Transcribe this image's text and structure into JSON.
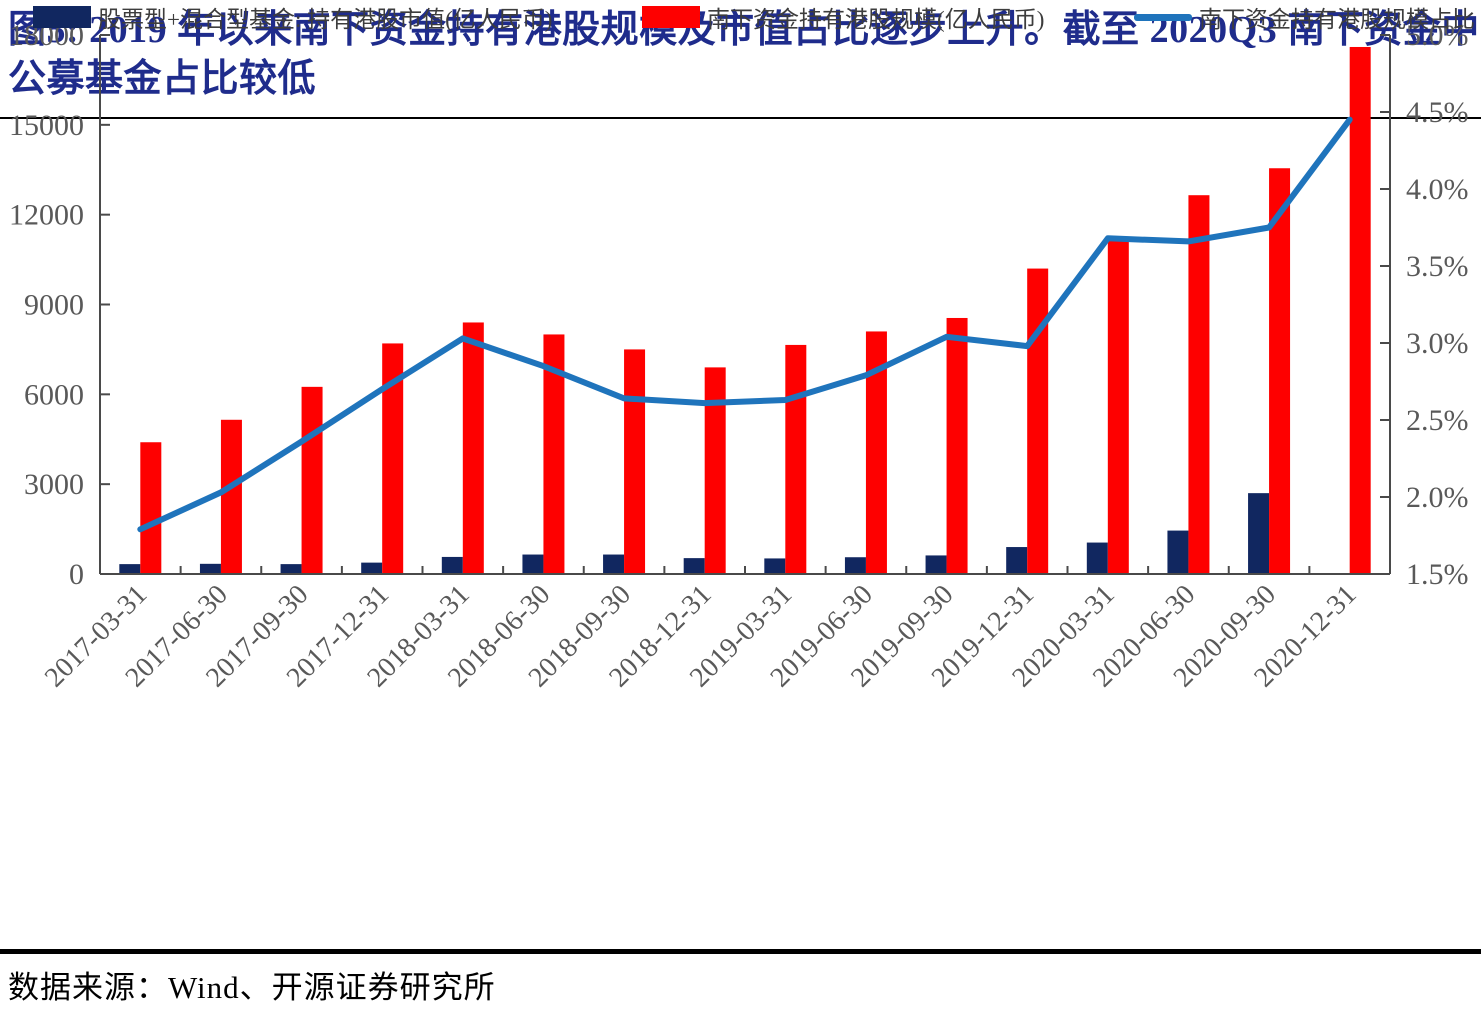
{
  "title": "图5: 2019 年以来南下资金持有港股规模及市值占比逐步上升。截至 2020Q3 南下资金中公募基金占比较低",
  "source": "数据来源：Wind、开源证券研究所",
  "colors": {
    "title_blue": "#1F2C8C",
    "fund_bar_navy": "#112760",
    "southbound_bar_red": "#FE0000",
    "ratio_line_blue": "#1F74BC",
    "axis_gray": "#4a4a4a",
    "tick_label_gray": "#595959",
    "legend_text": "#3d3d3d"
  },
  "legend": {
    "items": [
      {
        "label": "股票型+混合型基金: 持有港股市值(亿人民币)",
        "swatch": "bar"
      },
      {
        "label": "南下资金持有港股规模(亿人民币)",
        "swatch": "bar"
      },
      {
        "label": "南下资金持有港股规模占比",
        "swatch": "line"
      }
    ]
  },
  "chart_data": {
    "type": "bar",
    "subtype": "bar+line combo, dual axis",
    "categories": [
      "2017-03-31",
      "2017-06-30",
      "2017-09-30",
      "2017-12-31",
      "2018-03-31",
      "2018-06-30",
      "2018-09-30",
      "2018-12-31",
      "2019-03-31",
      "2019-06-30",
      "2019-09-30",
      "2019-12-31",
      "2020-03-31",
      "2020-06-30",
      "2020-09-30",
      "2020-12-31"
    ],
    "series": [
      {
        "name": "股票型+混合型基金: 持有港股市值(亿人民币)",
        "type": "bar",
        "axis": "left",
        "color": "#112760",
        "values": [
          330,
          340,
          330,
          380,
          570,
          650,
          650,
          530,
          520,
          560,
          620,
          900,
          1050,
          1450,
          2700,
          null
        ]
      },
      {
        "name": "南下资金持有港股规模(亿人民币)",
        "type": "bar",
        "axis": "left",
        "color": "#FE0000",
        "values": [
          4400,
          5150,
          6250,
          7700,
          8400,
          8000,
          7500,
          6900,
          7650,
          8100,
          8550,
          10200,
          11150,
          12650,
          13550,
          17600
        ]
      },
      {
        "name": "南下资金持有港股规模占比",
        "type": "line",
        "axis": "right",
        "color": "#1F74BC",
        "values": [
          1.79,
          2.03,
          2.36,
          2.7,
          3.03,
          2.85,
          2.64,
          2.61,
          2.63,
          2.79,
          3.04,
          2.98,
          3.68,
          3.66,
          3.75,
          4.45
        ]
      }
    ],
    "left_axis": {
      "min": 0,
      "max": 18000,
      "step": 3000,
      "labels": [
        "0",
        "3000",
        "6000",
        "9000",
        "12000",
        "15000",
        "18000"
      ]
    },
    "right_axis": {
      "min": 1.5,
      "max": 5.0,
      "step": 0.5,
      "labels": [
        "1.5%",
        "2.0%",
        "2.5%",
        "3.0%",
        "3.5%",
        "4.0%",
        "4.5%",
        "5.0%"
      ]
    },
    "grid": false,
    "legend_position": "bottom"
  }
}
